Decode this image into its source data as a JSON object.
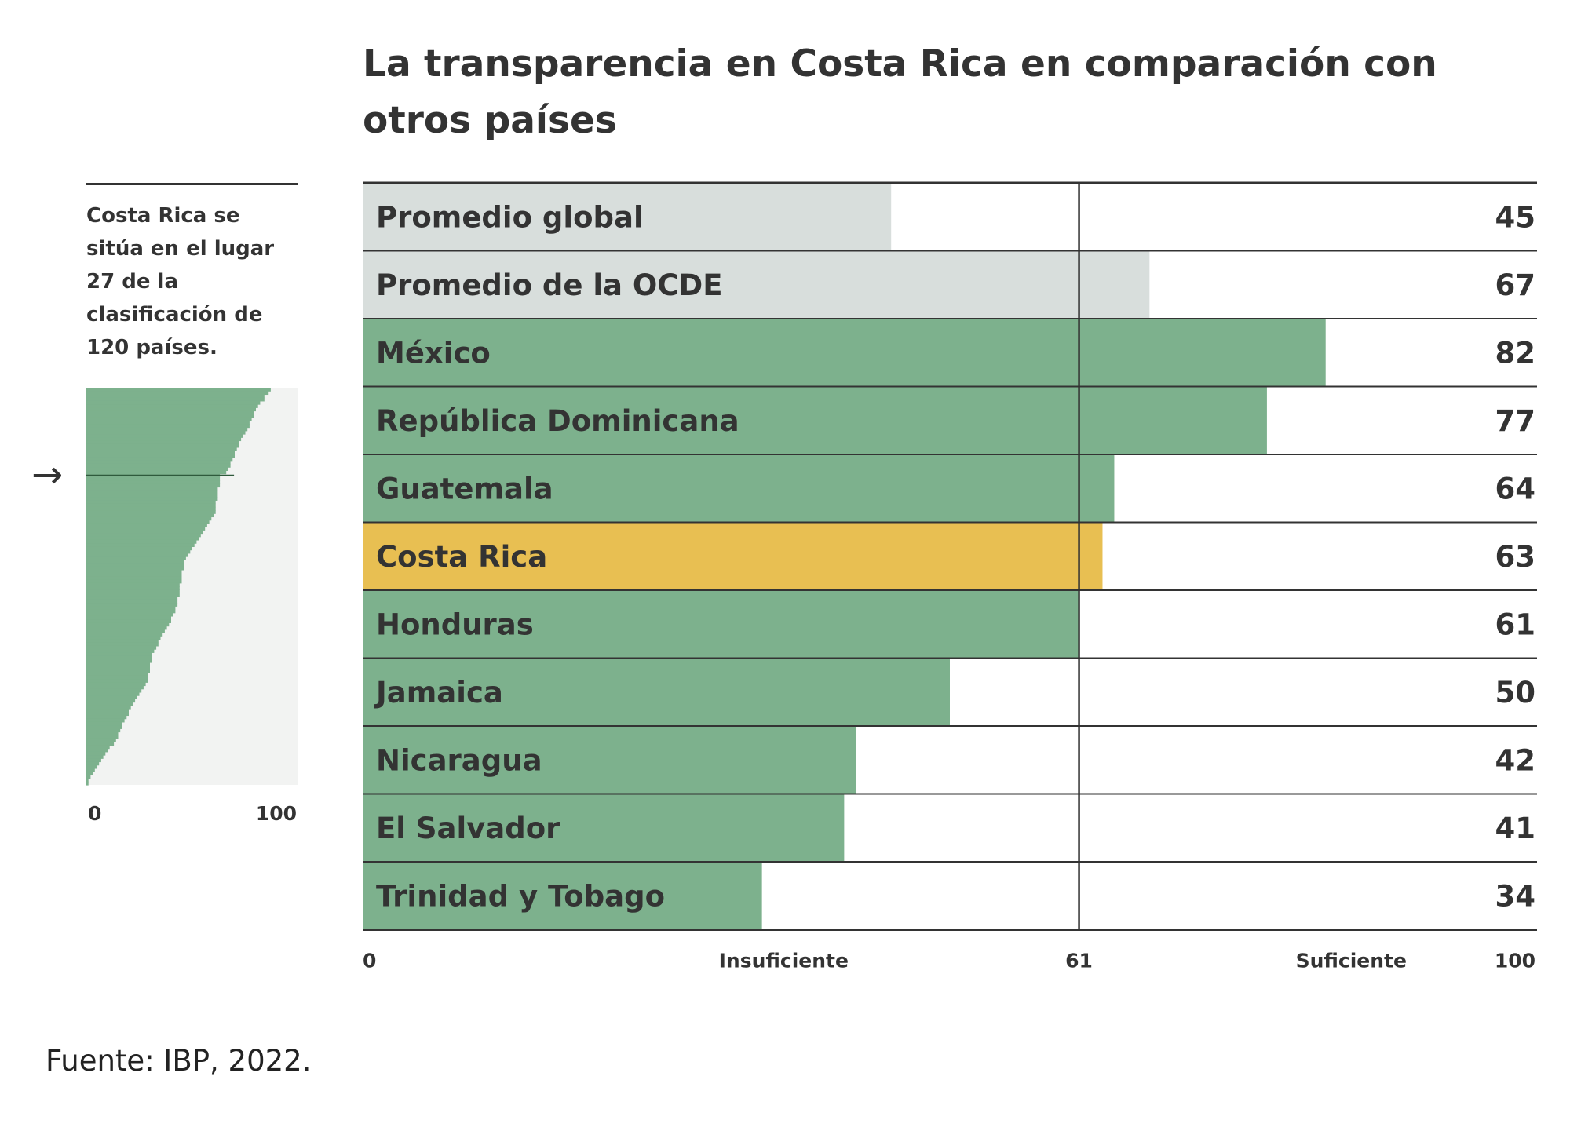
{
  "title": "La transparencia en Costa Rica en comparación con otros países",
  "side_note": "Costa Rica se sitúa en el lugar 27 de la clasificación de 120 países.",
  "source": "Fuente: IBP, 2022.",
  "colors": {
    "average": "#d8dedc",
    "country": "#7db18d",
    "highlight": "#e8bf52",
    "text": "#333333",
    "mini_background": "#f2f3f2"
  },
  "chart_data": [
    {
      "type": "bar",
      "orientation": "horizontal",
      "title": "La transparencia en Costa Rica en comparación con otros países",
      "categories": [
        "Promedio global",
        "Promedio de la OCDE",
        "México",
        "República Dominicana",
        "Guatemala",
        "Costa Rica",
        "Honduras",
        "Jamaica",
        "Nicaragua",
        "El Salvador",
        "Trinidad y Tobago"
      ],
      "values": [
        45,
        67,
        82,
        77,
        64,
        63,
        61,
        50,
        42,
        41,
        34
      ],
      "value_labels": [
        "45",
        "67",
        "82",
        "77",
        "64",
        "63",
        "61",
        "50",
        "42",
        "41",
        "34"
      ],
      "bar_kinds": [
        "average",
        "average",
        "country",
        "country",
        "country",
        "highlight",
        "country",
        "country",
        "country",
        "country",
        "country"
      ],
      "xlim": [
        0,
        100
      ],
      "threshold": 61,
      "x_ticks": [
        "0",
        "61",
        "100"
      ],
      "zone_labels": [
        "Insuficiente",
        "Suficiente"
      ],
      "grid": false
    },
    {
      "type": "area",
      "description_label": "Costa Rica se sitúa en el lugar 27 de la clasificación de 120 países.",
      "x_ticks": [
        "0",
        "100"
      ],
      "xlim": [
        0,
        100
      ],
      "countries": 120,
      "highlight_rank": 27,
      "highlight_value": 63,
      "sorted_scores": [
        87,
        86,
        84,
        84,
        82,
        81,
        80,
        79,
        79,
        78,
        77,
        77,
        76,
        75,
        74,
        73,
        72,
        72,
        71,
        70,
        70,
        69,
        68,
        68,
        67,
        66,
        63,
        63,
        63,
        63,
        62,
        62,
        62,
        62,
        61,
        61,
        61,
        61,
        60,
        59,
        58,
        57,
        56,
        55,
        54,
        53,
        52,
        51,
        50,
        49,
        48,
        47,
        46,
        46,
        46,
        45,
        45,
        45,
        45,
        44,
        44,
        44,
        44,
        43,
        43,
        43,
        42,
        42,
        41,
        40,
        40,
        39,
        38,
        37,
        36,
        35,
        34,
        34,
        33,
        32,
        31,
        31,
        31,
        30,
        30,
        30,
        29,
        29,
        29,
        28,
        27,
        26,
        25,
        24,
        23,
        22,
        21,
        20,
        20,
        19,
        18,
        17,
        17,
        16,
        15,
        15,
        14,
        13,
        11,
        10,
        9,
        8,
        7,
        6,
        5,
        4,
        3,
        2,
        1,
        1
      ]
    }
  ]
}
